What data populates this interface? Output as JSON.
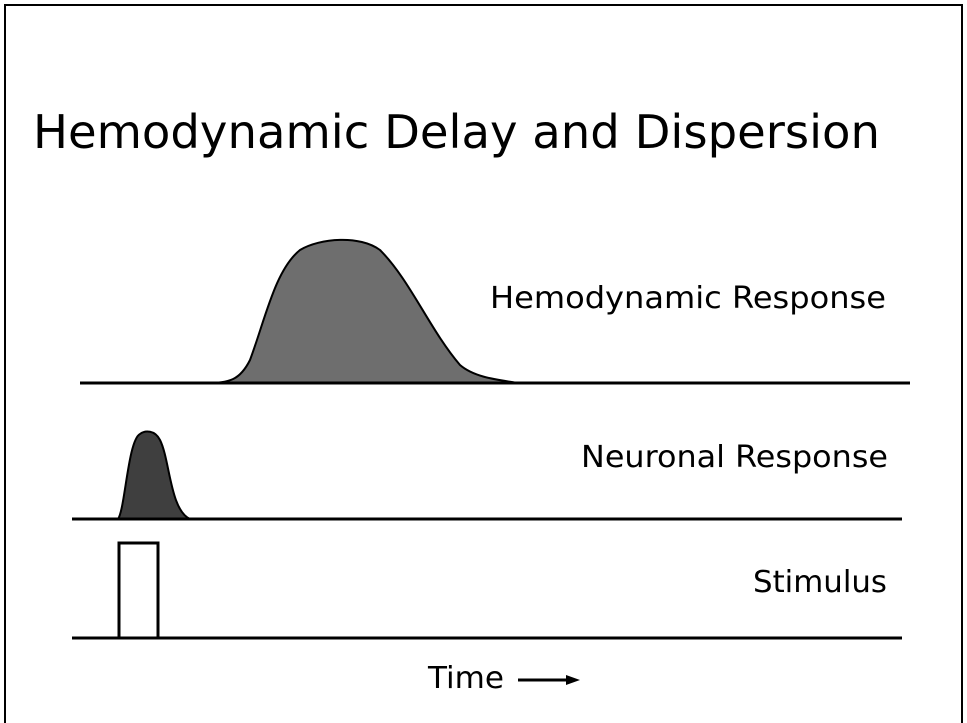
{
  "title": "Hemodynamic Delay and Dispersion",
  "labels": {
    "hemodynamic": "Hemodynamic Response",
    "neuronal": "Neuronal Response",
    "stimulus": "Stimulus"
  },
  "axis_label": "Time"
}
